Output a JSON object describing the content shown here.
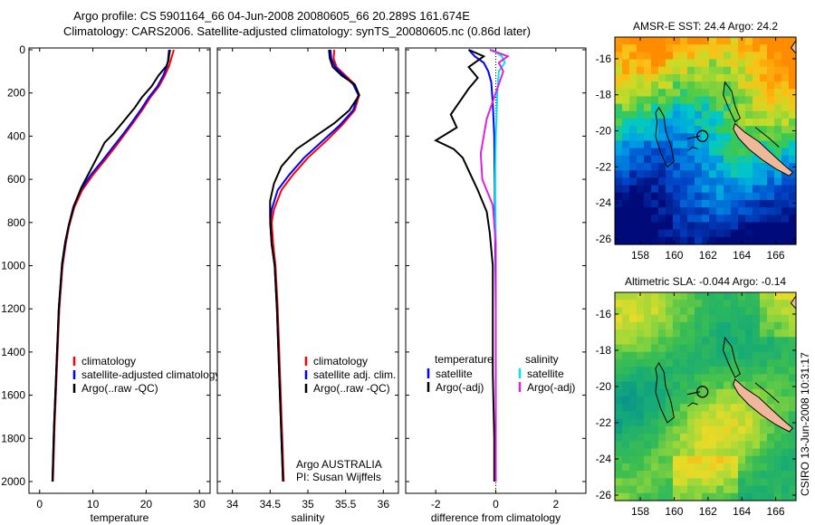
{
  "figure": {
    "title_line1": "Argo profile: CS 5901164_66 04-Jun-2008 20080605_66 20.289S 161.674E",
    "title_line2": "Climatology: CARS2006. Satellite-adjusted climatology: synTS_20080605.nc (0.86d later)",
    "side_label": "CSIRO 13-Jun-2008 10:31:17",
    "credit_line1": "Argo AUSTRALIA",
    "credit_line2": "PI: Susan Wijffels"
  },
  "chart_data": [
    {
      "type": "line",
      "id": "temperature",
      "xlabel": "temperature",
      "xlim": [
        -2,
        32
      ],
      "ylim": [
        2070,
        0
      ],
      "xticks": [
        0,
        10,
        20,
        30
      ],
      "yticks": [
        0,
        200,
        400,
        600,
        800,
        1000,
        1200,
        1400,
        1600,
        1800,
        2000
      ],
      "colors": {
        "climatology": "#ff0000",
        "satellite": "#0000ff",
        "argo": "#000000"
      },
      "legend": [
        "climatology",
        "satellite-adjusted climatology",
        "Argo(..raw -QC)"
      ],
      "series": [
        {
          "name": "climatology",
          "color": "#ff0000",
          "x": [
            25.2,
            24.9,
            24.6,
            24.3,
            23.5,
            22.4,
            20.8,
            19.5,
            17.8,
            16.0,
            14.2,
            12.3,
            10.0,
            8.0,
            6.5,
            5.5,
            4.9,
            4.3,
            3.7,
            3.2,
            2.8,
            2.5
          ],
          "y": [
            0,
            25,
            50,
            75,
            120,
            170,
            220,
            270,
            330,
            390,
            450,
            510,
            580,
            650,
            730,
            820,
            900,
            1000,
            1200,
            1500,
            1750,
            2000
          ]
        },
        {
          "name": "satellite-adjusted climatology",
          "color": "#0000ff",
          "x": [
            24.3,
            24.2,
            24.1,
            23.9,
            23.2,
            22.1,
            20.5,
            19.2,
            17.5,
            15.7,
            13.8,
            11.9,
            9.6,
            7.7,
            6.3,
            5.4,
            4.8,
            4.2,
            3.6,
            3.1,
            2.7,
            2.4
          ],
          "y": [
            0,
            25,
            50,
            75,
            120,
            170,
            220,
            270,
            330,
            390,
            450,
            510,
            580,
            650,
            730,
            820,
            900,
            1000,
            1200,
            1500,
            1750,
            2000
          ]
        },
        {
          "name": "Argo(..raw -QC)",
          "color": "#000000",
          "x": [
            24.5,
            24.3,
            24.2,
            23.8,
            22.3,
            21.0,
            19.2,
            17.8,
            15.8,
            13.8,
            12.2,
            11.4,
            9.5,
            7.8,
            6.5,
            5.5,
            4.8,
            4.2,
            3.6,
            3.1,
            2.7,
            2.4
          ],
          "y": [
            0,
            25,
            50,
            75,
            120,
            170,
            220,
            270,
            330,
            390,
            430,
            470,
            560,
            640,
            720,
            810,
            890,
            990,
            1200,
            1500,
            1750,
            2000
          ]
        }
      ]
    },
    {
      "type": "line",
      "id": "salinity",
      "xlabel": "salinity",
      "xlim": [
        33.8,
        36.2
      ],
      "ylim": [
        2070,
        0
      ],
      "xticks": [
        34,
        34.5,
        35,
        35.5,
        36
      ],
      "yticks": [
        0,
        200,
        400,
        600,
        800,
        1000,
        1200,
        1400,
        1600,
        1800,
        2000
      ],
      "legend": [
        "climatology",
        "satellite adj. clim.",
        "Argo(..raw -QC)"
      ],
      "series": [
        {
          "name": "climatology",
          "color": "#ff0000",
          "x": [
            35.35,
            35.34,
            35.38,
            35.5,
            35.62,
            35.68,
            35.62,
            35.45,
            35.25,
            35.0,
            34.8,
            34.65,
            34.55,
            34.52,
            34.54,
            34.57,
            34.6,
            34.63,
            34.66,
            34.68
          ],
          "y": [
            0,
            40,
            80,
            120,
            160,
            210,
            280,
            350,
            420,
            500,
            580,
            650,
            740,
            800,
            900,
            1000,
            1200,
            1500,
            1800,
            2000
          ]
        },
        {
          "name": "satellite adj. clim.",
          "color": "#0000ff",
          "x": [
            35.3,
            35.31,
            35.36,
            35.48,
            35.6,
            35.67,
            35.6,
            35.42,
            35.2,
            34.95,
            34.75,
            34.6,
            34.52,
            34.5,
            34.52,
            34.56,
            34.59,
            34.62,
            34.65,
            34.67
          ],
          "y": [
            0,
            40,
            80,
            120,
            160,
            210,
            280,
            350,
            420,
            500,
            580,
            650,
            740,
            800,
            900,
            1000,
            1200,
            1500,
            1800,
            2000
          ]
        },
        {
          "name": "Argo(..raw -QC)",
          "color": "#000000",
          "x": [
            35.28,
            35.29,
            35.33,
            35.45,
            35.62,
            35.68,
            35.55,
            35.35,
            35.1,
            34.85,
            34.65,
            34.55,
            34.5,
            34.5,
            34.52,
            34.56,
            34.59,
            34.62,
            34.65,
            34.67
          ],
          "y": [
            0,
            40,
            80,
            120,
            160,
            210,
            280,
            340,
            400,
            460,
            540,
            620,
            700,
            780,
            900,
            1000,
            1200,
            1500,
            1800,
            2000
          ]
        }
      ]
    },
    {
      "type": "line",
      "id": "difference",
      "xlabel": "difference from climatology",
      "xlim": [
        -3,
        3
      ],
      "ylim": [
        2070,
        0
      ],
      "xticks": [
        -2,
        0,
        2
      ],
      "yticks": [
        0,
        200,
        400,
        600,
        800,
        1000,
        1200,
        1400,
        1600,
        1800,
        2000
      ],
      "legend_group_1_title": "temperature",
      "legend_group_2_title": "salinity",
      "legend": [
        "satellite",
        "Argo(-adj)",
        "satellite",
        "Argo(-adj)"
      ],
      "series": [
        {
          "name": "temperature satellite",
          "color": "#0000ff",
          "x": [
            -0.9,
            -0.7,
            -0.4,
            -0.25,
            -0.15,
            -0.1,
            -0.05,
            -0.03,
            0.0,
            0.0
          ],
          "y": [
            0,
            30,
            60,
            100,
            150,
            250,
            400,
            700,
            1200,
            2000
          ]
        },
        {
          "name": "temperature Argo(-adj)",
          "color": "#000000",
          "x": [
            -0.9,
            -0.4,
            -0.9,
            -0.6,
            -0.9,
            -1.2,
            -1.5,
            -1.3,
            -2.0,
            -1.4,
            -1.1,
            -0.9,
            -0.6,
            -0.3,
            -0.2,
            -0.1,
            -0.1,
            -0.1,
            -0.05,
            -0.05
          ],
          "y": [
            0,
            30,
            80,
            130,
            180,
            240,
            300,
            360,
            420,
            460,
            500,
            560,
            650,
            750,
            850,
            1000,
            1200,
            1500,
            1800,
            2000
          ]
        },
        {
          "name": "salinity satellite",
          "color": "#00e5ee",
          "x": [
            -0.1,
            0.2,
            0.3,
            0.1,
            0.05,
            0.0,
            -0.02,
            0.0,
            0.0,
            0.0
          ],
          "y": [
            0,
            30,
            60,
            100,
            200,
            400,
            600,
            900,
            1400,
            2000
          ]
        },
        {
          "name": "salinity Argo(-adj)",
          "color": "#dd22dd",
          "x": [
            -0.2,
            0.4,
            0.1,
            0.25,
            0.0,
            -0.3,
            -0.5,
            -0.45,
            -0.1,
            0.0,
            0.0,
            0.0
          ],
          "y": [
            0,
            30,
            60,
            100,
            200,
            320,
            480,
            600,
            720,
            900,
            1400,
            2000
          ]
        }
      ]
    },
    {
      "type": "heatmap",
      "id": "sst_map",
      "title": "AMSR-E SST: 24.4 Argo: 24.2",
      "xlim": [
        156.5,
        167.2
      ],
      "ylim": [
        -26.3,
        -14.8
      ],
      "xticks": [
        158,
        160,
        162,
        164,
        166
      ],
      "yticks": [
        -16,
        -18,
        -20,
        -22,
        -24,
        -26
      ],
      "float_position": {
        "lon": 161.674,
        "lat": -20.289
      }
    },
    {
      "type": "heatmap",
      "id": "sla_map",
      "title": "Altimetric SLA: -0.044 Argo: -0.14",
      "xlim": [
        156.5,
        167.2
      ],
      "ylim": [
        -26.3,
        -14.8
      ],
      "xticks": [
        158,
        160,
        162,
        164,
        166
      ],
      "yticks": [
        -16,
        -18,
        -20,
        -22,
        -24,
        -26
      ],
      "float_position": {
        "lon": 161.674,
        "lat": -20.289
      }
    }
  ]
}
